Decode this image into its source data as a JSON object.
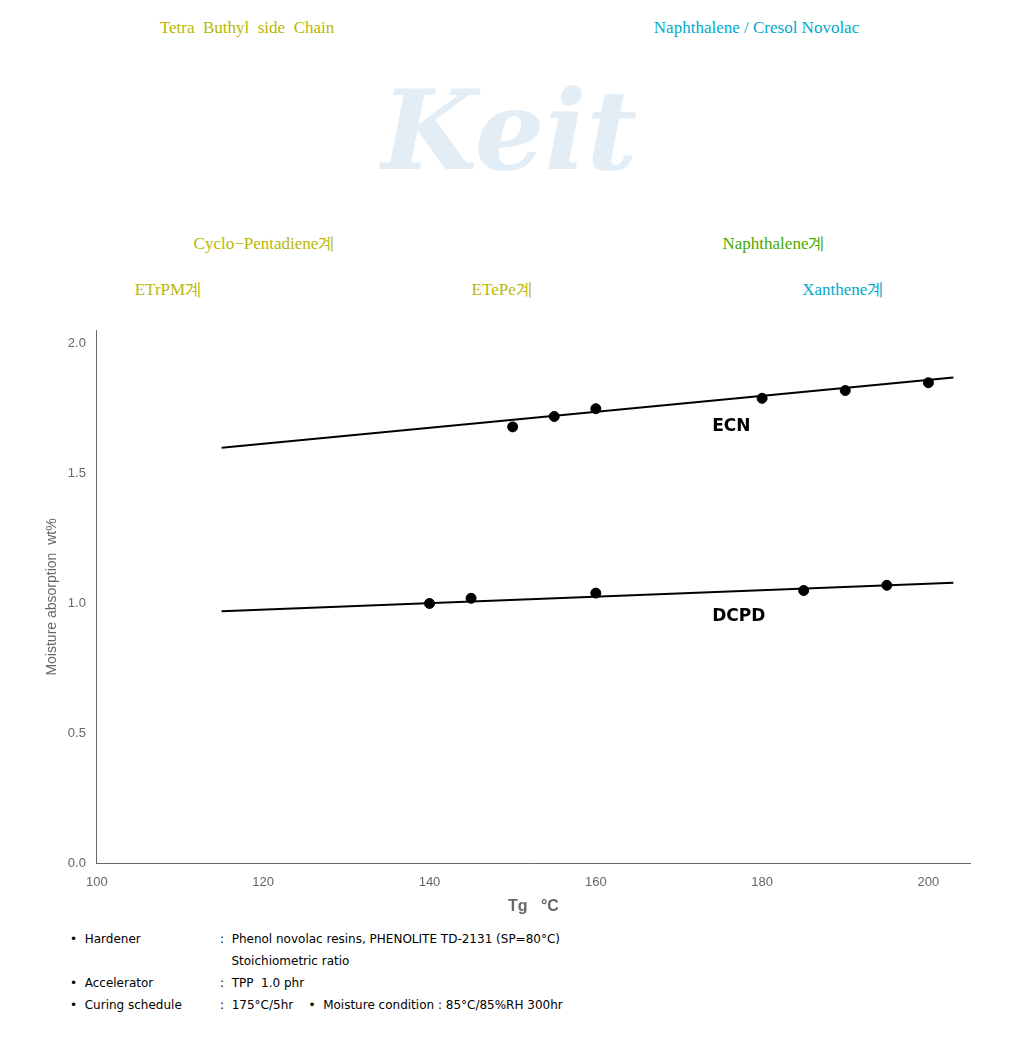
{
  "chart_data": {
    "type": "scatter",
    "xlabel": "Tg   °C",
    "ylabel": "Moisture absorption  wt%",
    "xlim": [
      100,
      205
    ],
    "ylim": [
      0.0,
      2.05
    ],
    "xticks": [
      100,
      120,
      140,
      160,
      180,
      200
    ],
    "yticks": [
      {
        "value": 0.0,
        "label": "0.0"
      },
      0.5,
      {
        "value": 1.0,
        "label": "1.0"
      },
      1.5,
      {
        "value": 2.0,
        "label": "2.0"
      }
    ],
    "grid": false,
    "series": [
      {
        "type": "line",
        "x": [
          115,
          203
        ],
        "values": [
          1.6,
          1.87
        ],
        "color": "#000000",
        "line_style": "solid"
      },
      {
        "type": "line",
        "x": [
          115,
          203
        ],
        "values": [
          0.97,
          1.08
        ],
        "color": "#000000",
        "line_style": "solid"
      },
      {
        "type": "scatter",
        "x": [
          150,
          155,
          160,
          180,
          190,
          200
        ],
        "values": [
          1.68,
          1.72,
          1.75,
          1.79,
          1.82,
          1.85
        ],
        "color": "#000000",
        "marker": "circle"
      },
      {
        "type": "scatter",
        "x": [
          140,
          145,
          160,
          185,
          195
        ],
        "values": [
          1.0,
          1.02,
          1.04,
          1.05,
          1.07
        ],
        "color": "#000000",
        "marker": "circle"
      }
    ],
    "annotations": [
      {
        "text": "ECN",
        "x": 174,
        "y": 1.68
      },
      {
        "text": "DCPD",
        "x": 174,
        "y": 0.95
      }
    ],
    "structure_labels": [
      [
        {
          "text": "Tetra  Buthyl  side  Chain",
          "color": "#b8b800"
        },
        {
          "text": "Naphthalene / Cresol Novolac",
          "color": "#00aacc"
        }
      ],
      [
        {
          "text": "Cyclo−Pentadiene계",
          "color": "#b8b800"
        },
        {
          "text": "Naphthalene계",
          "color": "#44aa00"
        }
      ],
      [
        {
          "text": "ETrPM계",
          "color": "#b8b800"
        },
        {
          "text": "ETePe계",
          "color": "#b8b800"
        },
        {
          "text": "Xanthene계",
          "color": "#00aacc"
        }
      ]
    ],
    "watermark": {
      "text": "Keit",
      "color": "#b8d4e8"
    },
    "notes": [
      [
        "•  Hardener",
        ":  Phenol novolac resins, PHENOLITE TD-2131 (SP=80°C)"
      ],
      [
        null,
        "   Stoichiometric ratio"
      ],
      [
        "•  Accelerator",
        ":  TPP  1.0 phr"
      ],
      [
        "•  Curing schedule",
        ":  175°C/5hr    •  Moisture condition : 85°C/85%RH 300hr"
      ]
    ]
  }
}
